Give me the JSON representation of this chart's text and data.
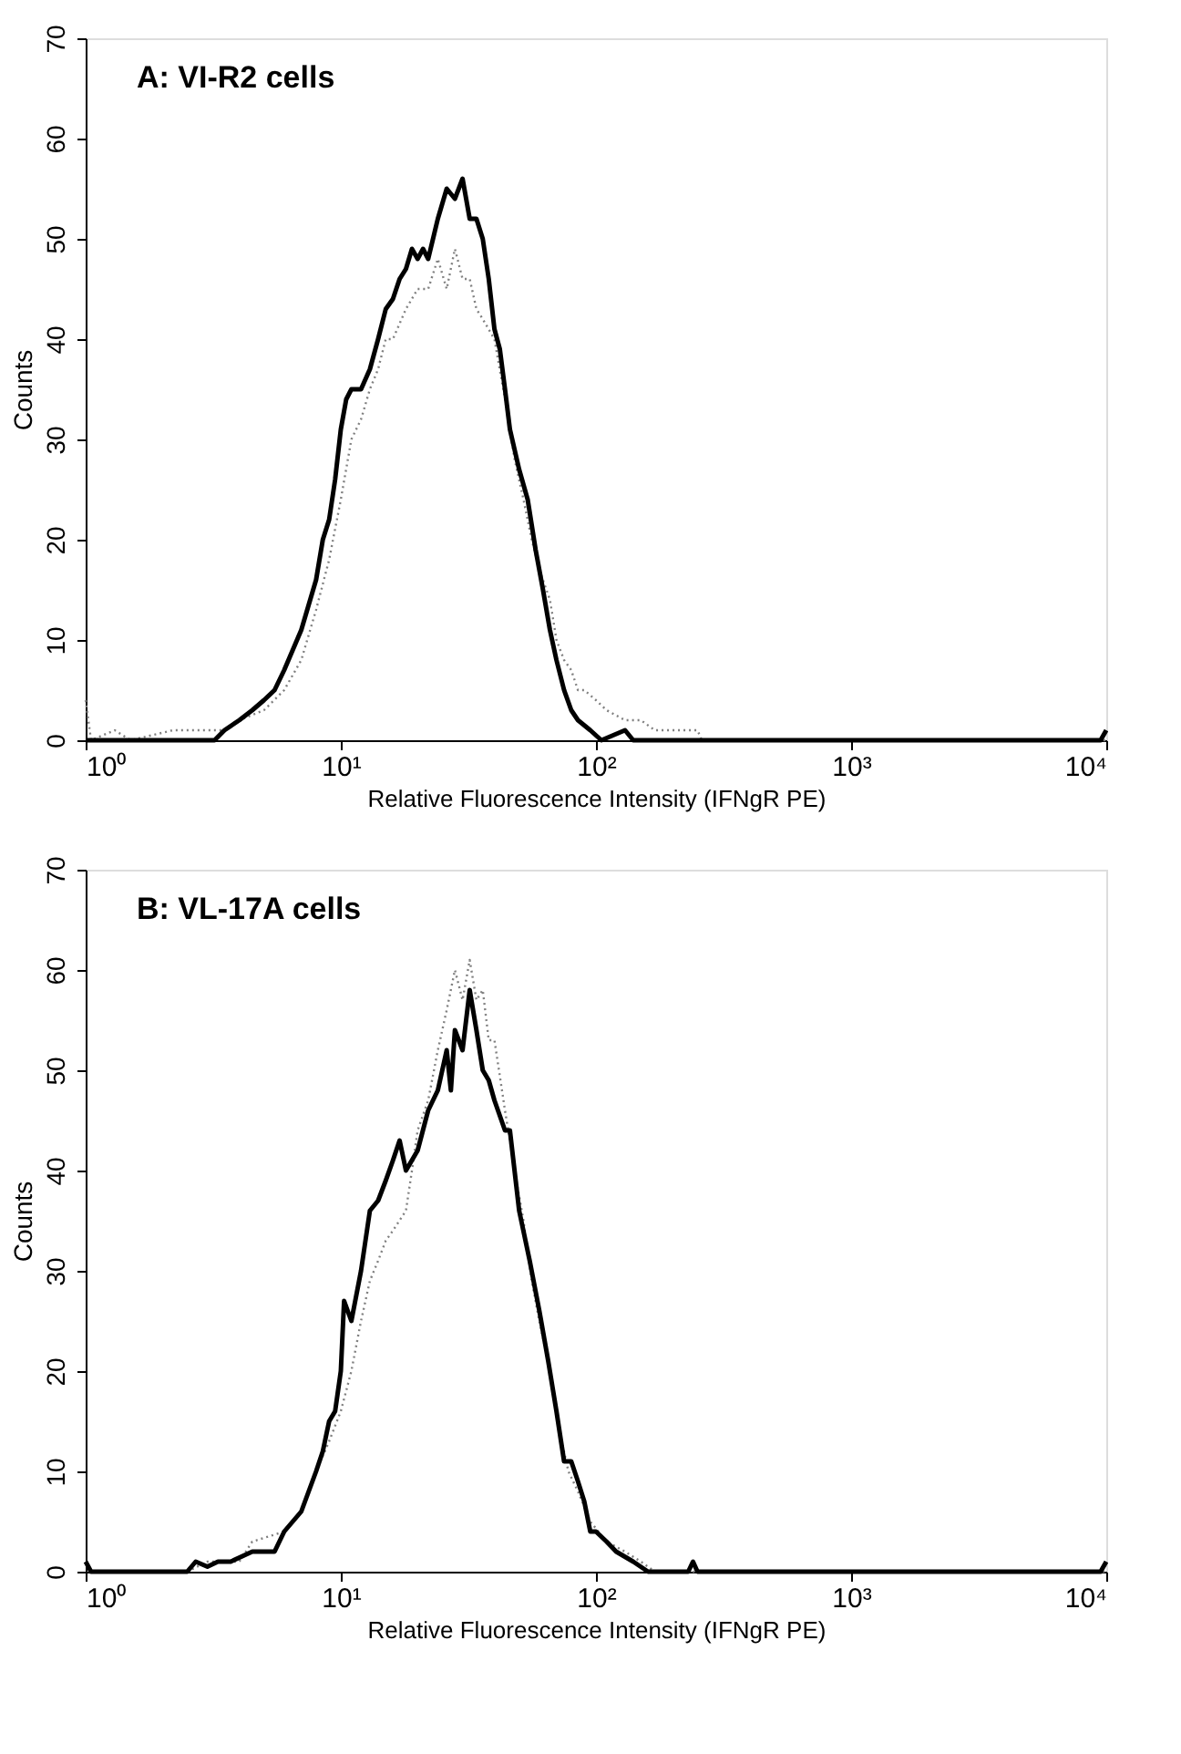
{
  "chart_data": [
    {
      "type": "line",
      "title": "A: VI-R2 cells",
      "xlabel": "Relative Fluorescence Intensity (IFNgR PE)",
      "ylabel": "Counts",
      "log": "x",
      "grid": false,
      "xlim": [
        1,
        10000
      ],
      "xticks": [
        {
          "value": 1,
          "label": "10⁰"
        },
        {
          "value": 10,
          "label": "10¹"
        },
        {
          "value": 100,
          "label": "10²"
        },
        {
          "value": 1000,
          "label": "10³"
        },
        {
          "value": 10000,
          "label": "10⁴"
        }
      ],
      "ylim": [
        0,
        70
      ],
      "yticks": [
        0,
        10,
        20,
        30,
        40,
        50,
        60,
        70
      ],
      "series": [
        {
          "color": "#808080",
          "line_style": "dotted",
          "x": [
            1,
            1.05,
            1.3,
            1.5,
            2.2,
            2.5,
            3,
            3.5,
            4,
            5,
            6,
            7,
            8,
            9,
            10,
            11,
            12,
            13,
            14,
            15,
            16,
            18,
            20,
            22,
            24,
            26,
            28,
            30,
            32,
            34,
            36,
            40,
            44,
            48,
            52,
            56,
            60,
            66,
            70,
            75,
            80,
            85,
            90,
            100,
            110,
            130,
            150,
            170,
            200,
            250,
            260,
            10000
          ],
          "values": [
            4,
            0,
            1,
            0,
            1,
            1,
            1,
            1,
            2,
            3,
            5,
            8,
            13,
            18,
            24,
            30,
            32,
            35,
            37,
            40,
            40,
            43,
            45,
            45,
            48,
            45,
            49,
            46,
            46,
            43,
            42,
            40,
            34,
            28,
            24,
            20,
            17,
            14,
            10,
            8,
            7,
            5,
            5,
            4,
            3,
            2,
            2,
            1,
            1,
            1,
            0,
            0
          ]
        },
        {
          "color": "#000000",
          "line_style": "solid",
          "x": [
            1,
            3.2,
            3.5,
            4,
            4.5,
            5,
            5.5,
            6,
            7,
            8,
            8.5,
            9,
            9.5,
            10,
            10.5,
            11,
            12,
            13,
            14,
            15,
            16,
            17,
            18,
            19,
            20,
            21,
            22,
            24,
            26,
            28,
            30,
            32,
            34,
            36,
            38,
            40,
            42,
            44,
            46,
            50,
            54,
            58,
            62,
            66,
            70,
            75,
            80,
            85,
            95,
            105,
            130,
            140,
            9500,
            10000
          ],
          "values": [
            0,
            0,
            1,
            2,
            3,
            4,
            5,
            7,
            11,
            16,
            20,
            22,
            26,
            31,
            34,
            35,
            35,
            37,
            40,
            43,
            44,
            46,
            47,
            49,
            48,
            49,
            48,
            52,
            55,
            54,
            56,
            52,
            52,
            50,
            46,
            41,
            39,
            35,
            31,
            27,
            24,
            19,
            15,
            11,
            8,
            5,
            3,
            2,
            1,
            0,
            1,
            0,
            0,
            1
          ]
        }
      ]
    },
    {
      "type": "line",
      "title": "B: VL-17A cells",
      "xlabel": "Relative Fluorescence Intensity (IFNgR PE)",
      "ylabel": "Counts",
      "log": "x",
      "grid": false,
      "xlim": [
        1,
        10000
      ],
      "xticks": [
        {
          "value": 1,
          "label": "10⁰"
        },
        {
          "value": 10,
          "label": "10¹"
        },
        {
          "value": 100,
          "label": "10²"
        },
        {
          "value": 1000,
          "label": "10³"
        },
        {
          "value": 10000,
          "label": "10⁴"
        }
      ],
      "ylim": [
        0,
        70
      ],
      "yticks": [
        0,
        10,
        20,
        30,
        40,
        50,
        60,
        70
      ],
      "series": [
        {
          "color": "#808080",
          "line_style": "dotted",
          "x": [
            2.5,
            3,
            4,
            4.5,
            6,
            7,
            8,
            9,
            10,
            11,
            12,
            13,
            14,
            15,
            16,
            18,
            19,
            20,
            22,
            24,
            26,
            28,
            30,
            32,
            34,
            36,
            38,
            40,
            44,
            48,
            52,
            56,
            60,
            66,
            72,
            78,
            85,
            95,
            110,
            130,
            150,
            170,
            10000
          ],
          "values": [
            0,
            1,
            1,
            3,
            4,
            6,
            10,
            13,
            16,
            20,
            25,
            29,
            31,
            33,
            34,
            36,
            40,
            44,
            47,
            52,
            56,
            60,
            57,
            61,
            57,
            58,
            53,
            53,
            46,
            40,
            35,
            29,
            25,
            20,
            14,
            10,
            8,
            5,
            3,
            2,
            1,
            0,
            0
          ]
        },
        {
          "color": "#000000",
          "line_style": "solid",
          "x": [
            1,
            1.05,
            2.5,
            2.7,
            3,
            3.3,
            3.7,
            4.5,
            5.5,
            6,
            7,
            8,
            8.5,
            9,
            9.5,
            10,
            10.3,
            11,
            12,
            13,
            14,
            15,
            16,
            17,
            18,
            20,
            22,
            24,
            26,
            27,
            28,
            30,
            32,
            34,
            36,
            38,
            40,
            44,
            46,
            50,
            55,
            60,
            65,
            70,
            75,
            80,
            85,
            90,
            95,
            100,
            110,
            120,
            140,
            160,
            230,
            240,
            250,
            9500,
            10000
          ],
          "values": [
            1,
            0,
            0,
            1,
            0.5,
            1,
            1,
            2,
            2,
            4,
            6,
            10,
            12,
            15,
            16,
            20,
            27,
            25,
            30,
            36,
            37,
            39,
            41,
            43,
            40,
            42,
            46,
            48,
            52,
            48,
            54,
            52,
            58,
            54,
            50,
            49,
            47,
            44,
            44,
            36,
            31,
            26,
            21,
            16,
            11,
            11,
            9,
            7,
            4,
            4,
            3,
            2,
            1,
            0,
            0,
            1,
            0,
            0,
            1
          ]
        }
      ]
    }
  ]
}
